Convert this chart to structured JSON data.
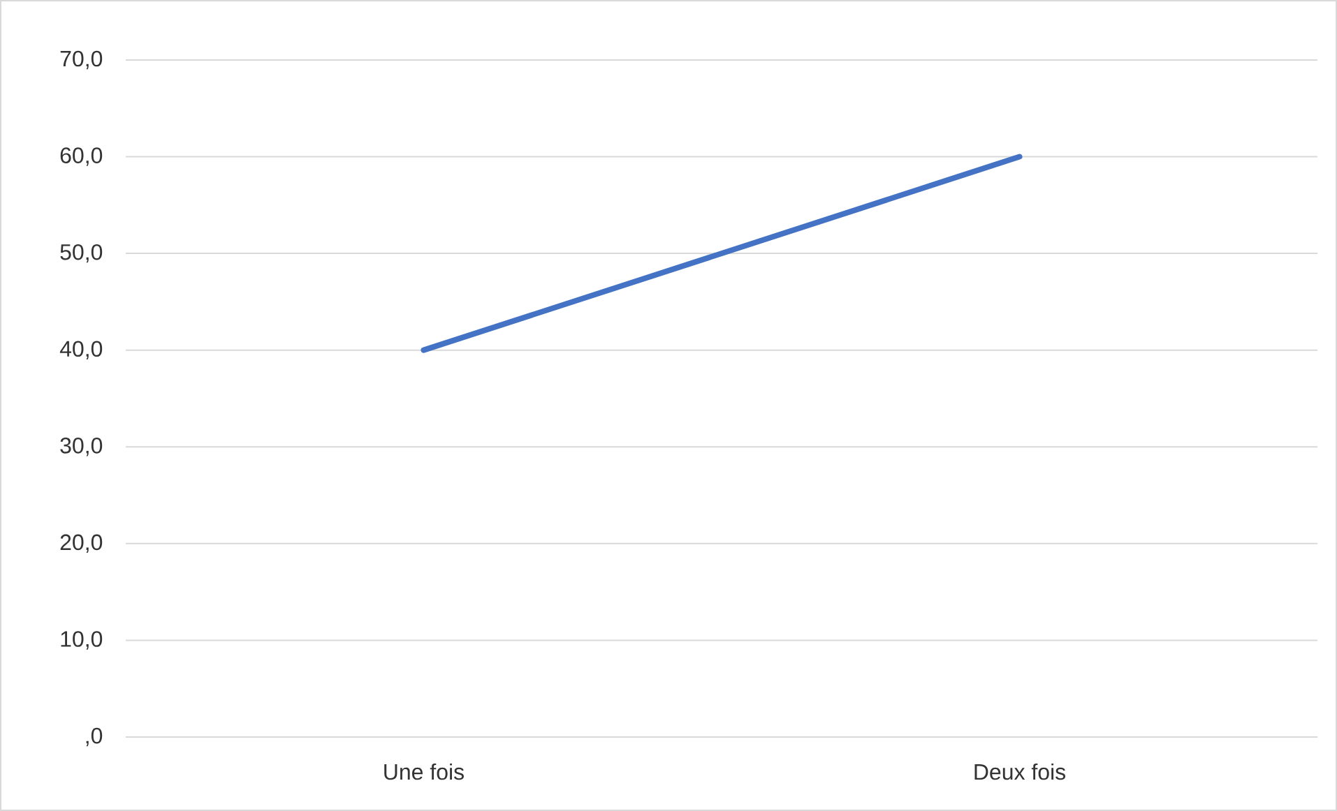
{
  "chart_data": {
    "type": "line",
    "categories": [
      "Une fois",
      "Deux fois"
    ],
    "series": [
      {
        "color": "#4472c4",
        "values": [
          40,
          60
        ]
      }
    ],
    "ylim": [
      0,
      70
    ],
    "yticks": [
      {
        "value": 0,
        "label": ",0"
      },
      {
        "value": 10,
        "label": "10,0"
      },
      {
        "value": 20,
        "label": "20,0"
      },
      {
        "value": 30,
        "label": "30,0"
      },
      {
        "value": 40,
        "label": "40,0"
      },
      {
        "value": 50,
        "label": "50,0"
      },
      {
        "value": 60,
        "label": "60,0"
      },
      {
        "value": 70,
        "label": "70,0"
      }
    ],
    "grid": "y",
    "marker": "none",
    "line_style": "solid"
  }
}
